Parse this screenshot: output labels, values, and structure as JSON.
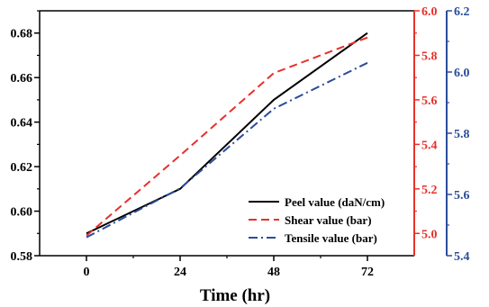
{
  "chart_data": {
    "type": "line",
    "xlabel": "Time (hr)",
    "x": [
      0,
      24,
      48,
      72
    ],
    "xticks": [
      "0",
      "24",
      "48",
      "72"
    ],
    "xlim": [
      -12,
      84
    ],
    "axes": [
      {
        "id": "left",
        "ylim": [
          0.58,
          0.69
        ],
        "ticks": [
          "0.58",
          "0.60",
          "0.62",
          "0.64",
          "0.66",
          "0.68"
        ],
        "color": "#000000"
      },
      {
        "id": "right1",
        "ylim": [
          4.9,
          6.0
        ],
        "ticks": [
          "5.0",
          "5.2",
          "5.4",
          "5.6",
          "5.8",
          "6.0"
        ],
        "color": "#e8302a"
      },
      {
        "id": "right2",
        "ylim": [
          5.4,
          6.2
        ],
        "ticks": [
          "5.4",
          "5.6",
          "5.8",
          "6.0",
          "6.2"
        ],
        "color": "#2b4c9b"
      }
    ],
    "series": [
      {
        "name": "Peel value (daN/cm)",
        "axis": "left",
        "values": [
          0.59,
          0.61,
          0.65,
          0.68
        ],
        "color": "#000000",
        "dash": "solid"
      },
      {
        "name": "Shear value (bar)",
        "axis": "right1",
        "values": [
          4.99,
          5.35,
          5.72,
          5.88
        ],
        "color": "#e8302a",
        "dash": "dash"
      },
      {
        "name": "Tensile value (bar)",
        "axis": "right2",
        "values": [
          5.46,
          5.62,
          5.88,
          6.03
        ],
        "color": "#2b4c9b",
        "dash": "dashdot"
      }
    ],
    "legend": "bottom-right",
    "grid": false
  }
}
